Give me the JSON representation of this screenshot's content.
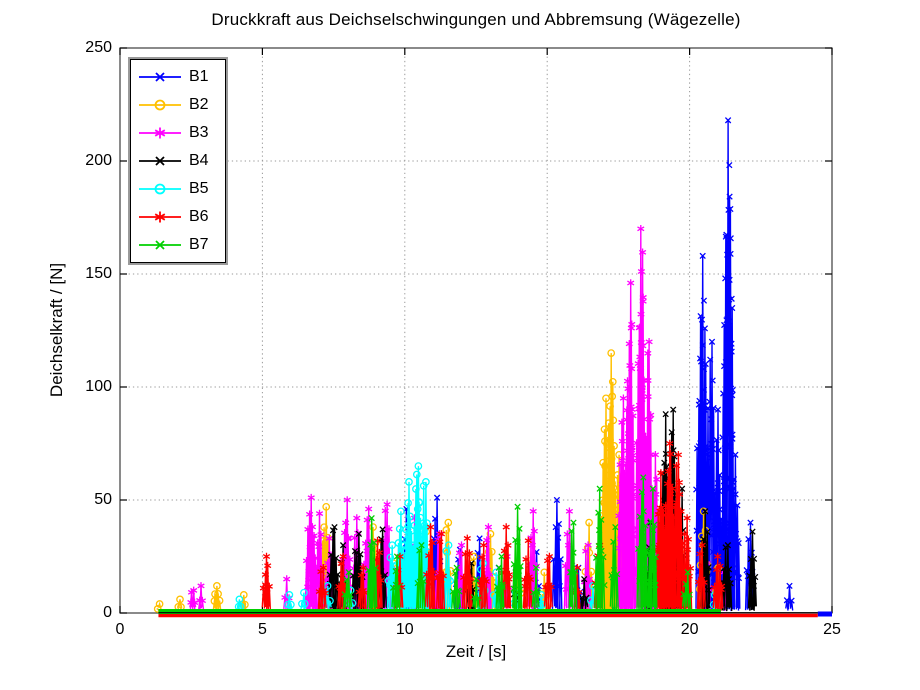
{
  "chart_data": {
    "type": "line",
    "title": "Druckkraft aus Deichselschwingungen und Abbremsung (Wägezelle)",
    "xlabel": "Zeit / [s]",
    "ylabel": "Deichselkraft / [N]",
    "xlim": [
      0,
      25
    ],
    "ylim": [
      0,
      250
    ],
    "xticks": [
      0,
      5,
      10,
      15,
      20,
      25
    ],
    "yticks": [
      0,
      50,
      100,
      150,
      200,
      250
    ],
    "grid": "dotted",
    "grid_color": "#999999",
    "legend_position": "top-left",
    "series_note": "clusters are spike bursts read from the plot: [time_s, peak_force_N, burst_width_s, spike_count]; baseline = [t_start, t_end, line_px, y_offset_px] at ~0 N",
    "series": [
      {
        "name": "B1",
        "color": "#0000ff",
        "marker": "x",
        "baseline": [
          24.5,
          25.0,
          5,
          1
        ],
        "clusters": [
          [
            9.3,
            15,
            0.15,
            3
          ],
          [
            10.05,
            46,
            0.25,
            5
          ],
          [
            11.1,
            51,
            0.3,
            6
          ],
          [
            11.9,
            28,
            0.2,
            4
          ],
          [
            12.6,
            33,
            0.2,
            4
          ],
          [
            13.3,
            20,
            0.15,
            3
          ],
          [
            14.6,
            27,
            0.2,
            4
          ],
          [
            15.35,
            50,
            0.25,
            5
          ],
          [
            16.1,
            20,
            0.15,
            3
          ],
          [
            17.3,
            30,
            0.15,
            3
          ],
          [
            20.45,
            158,
            0.35,
            8
          ],
          [
            20.75,
            120,
            0.3,
            6
          ],
          [
            21.0,
            90,
            0.25,
            5
          ],
          [
            21.35,
            218,
            0.35,
            9
          ],
          [
            21.6,
            70,
            0.25,
            5
          ],
          [
            22.1,
            40,
            0.2,
            4
          ],
          [
            23.5,
            12,
            0.15,
            3
          ]
        ]
      },
      {
        "name": "B2",
        "color": "#ffc000",
        "marker": "o",
        "baseline": null,
        "clusters": [
          [
            1.35,
            4,
            0.08,
            2
          ],
          [
            2.1,
            6,
            0.1,
            3
          ],
          [
            3.4,
            12,
            0.2,
            5
          ],
          [
            4.35,
            8,
            0.1,
            3
          ],
          [
            7.2,
            47,
            0.3,
            6
          ],
          [
            7.9,
            25,
            0.2,
            4
          ],
          [
            8.9,
            38,
            0.25,
            5
          ],
          [
            9.6,
            22,
            0.15,
            3
          ],
          [
            10.75,
            36,
            0.25,
            5
          ],
          [
            11.5,
            40,
            0.2,
            4
          ],
          [
            12.4,
            25,
            0.2,
            4
          ],
          [
            13.0,
            35,
            0.25,
            5
          ],
          [
            14.0,
            20,
            0.15,
            3
          ],
          [
            14.9,
            18,
            0.15,
            3
          ],
          [
            16.45,
            40,
            0.2,
            4
          ],
          [
            17.05,
            95,
            0.3,
            7
          ],
          [
            17.25,
            115,
            0.3,
            7
          ],
          [
            17.5,
            70,
            0.2,
            4
          ],
          [
            19.55,
            57,
            0.25,
            5
          ],
          [
            20.5,
            45,
            0.25,
            5
          ],
          [
            21.0,
            20,
            0.15,
            3
          ]
        ]
      },
      {
        "name": "B3",
        "color": "#ff00ff",
        "marker": "*",
        "baseline": null,
        "clusters": [
          [
            2.55,
            10,
            0.15,
            4
          ],
          [
            2.85,
            12,
            0.1,
            3
          ],
          [
            5.85,
            15,
            0.15,
            3
          ],
          [
            6.7,
            51,
            0.3,
            7
          ],
          [
            7.0,
            44,
            0.2,
            5
          ],
          [
            7.35,
            33,
            0.25,
            5
          ],
          [
            7.95,
            50,
            0.25,
            6
          ],
          [
            8.3,
            42,
            0.2,
            5
          ],
          [
            8.7,
            46,
            0.25,
            6
          ],
          [
            9.35,
            48,
            0.3,
            6
          ],
          [
            10.35,
            42,
            0.25,
            5
          ],
          [
            11.2,
            35,
            0.2,
            4
          ],
          [
            11.95,
            30,
            0.2,
            4
          ],
          [
            12.9,
            38,
            0.2,
            4
          ],
          [
            13.6,
            25,
            0.15,
            3
          ],
          [
            14.5,
            45,
            0.25,
            5
          ],
          [
            15.75,
            45,
            0.2,
            4
          ],
          [
            16.4,
            30,
            0.2,
            4
          ],
          [
            17.65,
            95,
            0.25,
            6
          ],
          [
            17.9,
            146,
            0.3,
            8
          ],
          [
            18.3,
            170,
            0.3,
            9
          ],
          [
            18.55,
            120,
            0.25,
            6
          ],
          [
            18.8,
            70,
            0.2,
            5
          ],
          [
            20.6,
            22,
            0.2,
            4
          ],
          [
            21.2,
            18,
            0.15,
            3
          ]
        ]
      },
      {
        "name": "B4",
        "color": "#000000",
        "marker": "x",
        "baseline": null,
        "clusters": [
          [
            7.5,
            38,
            0.3,
            6
          ],
          [
            7.8,
            30,
            0.2,
            4
          ],
          [
            8.35,
            35,
            0.3,
            6
          ],
          [
            9.2,
            37,
            0.2,
            4
          ],
          [
            12.3,
            22,
            0.2,
            4
          ],
          [
            13.9,
            18,
            0.15,
            3
          ],
          [
            16.3,
            15,
            0.15,
            3
          ],
          [
            18.6,
            40,
            0.2,
            4
          ],
          [
            19.15,
            88,
            0.3,
            7
          ],
          [
            19.4,
            90,
            0.25,
            6
          ],
          [
            19.7,
            55,
            0.2,
            4
          ],
          [
            20.55,
            45,
            0.25,
            5
          ],
          [
            21.3,
            30,
            0.3,
            6
          ],
          [
            22.2,
            36,
            0.2,
            5
          ]
        ]
      },
      {
        "name": "B5",
        "color": "#00ffff",
        "marker": "o",
        "baseline": null,
        "clusters": [
          [
            4.2,
            6,
            0.1,
            3
          ],
          [
            5.95,
            8,
            0.1,
            3
          ],
          [
            6.45,
            9,
            0.1,
            3
          ],
          [
            7.3,
            12,
            0.15,
            3
          ],
          [
            8.1,
            10,
            0.1,
            3
          ],
          [
            9.55,
            30,
            0.25,
            5
          ],
          [
            9.85,
            45,
            0.25,
            6
          ],
          [
            10.15,
            58,
            0.3,
            7
          ],
          [
            10.45,
            65,
            0.3,
            8
          ],
          [
            10.7,
            58,
            0.25,
            6
          ],
          [
            11.5,
            30,
            0.2,
            4
          ],
          [
            12.7,
            22,
            0.2,
            4
          ],
          [
            13.2,
            18,
            0.15,
            3
          ],
          [
            13.9,
            9,
            0.15,
            3
          ],
          [
            14.8,
            8,
            0.1,
            3
          ],
          [
            16.6,
            12,
            0.15,
            3
          ],
          [
            20.9,
            8,
            0.1,
            3
          ]
        ]
      },
      {
        "name": "B6",
        "color": "#ff0000",
        "marker": "*",
        "baseline": [
          1.35,
          24.5,
          3.5,
          2.5
        ],
        "clusters": [
          [
            5.15,
            25,
            0.2,
            5
          ],
          [
            7.1,
            20,
            0.2,
            4
          ],
          [
            7.8,
            25,
            0.2,
            4
          ],
          [
            8.5,
            20,
            0.2,
            4
          ],
          [
            9.05,
            32,
            0.25,
            5
          ],
          [
            9.8,
            25,
            0.2,
            4
          ],
          [
            10.9,
            38,
            0.25,
            5
          ],
          [
            11.25,
            35,
            0.2,
            4
          ],
          [
            12.2,
            33,
            0.25,
            5
          ],
          [
            12.75,
            30,
            0.2,
            4
          ],
          [
            13.55,
            38,
            0.25,
            5
          ],
          [
            14.3,
            32,
            0.2,
            4
          ],
          [
            15.05,
            25,
            0.2,
            4
          ],
          [
            16.05,
            20,
            0.15,
            3
          ],
          [
            16.8,
            30,
            0.2,
            4
          ],
          [
            19.0,
            62,
            0.3,
            7
          ],
          [
            19.3,
            75,
            0.35,
            9
          ],
          [
            19.6,
            70,
            0.3,
            7
          ],
          [
            19.9,
            42,
            0.25,
            5
          ],
          [
            20.4,
            30,
            0.2,
            4
          ],
          [
            21.0,
            25,
            0.25,
            5
          ]
        ]
      },
      {
        "name": "B7",
        "color": "#00d000",
        "marker": "x",
        "baseline": [
          1.35,
          21.1,
          5,
          -1.5
        ],
        "clusters": [
          [
            8.0,
            18,
            0.2,
            4
          ],
          [
            8.85,
            42,
            0.25,
            5
          ],
          [
            9.7,
            25,
            0.2,
            4
          ],
          [
            10.55,
            30,
            0.2,
            4
          ],
          [
            11.8,
            20,
            0.2,
            4
          ],
          [
            12.5,
            15,
            0.15,
            3
          ],
          [
            13.35,
            25,
            0.2,
            4
          ],
          [
            13.95,
            47,
            0.25,
            5
          ],
          [
            14.6,
            20,
            0.15,
            3
          ],
          [
            15.9,
            40,
            0.2,
            4
          ],
          [
            16.85,
            55,
            0.25,
            5
          ],
          [
            17.35,
            38,
            0.2,
            4
          ],
          [
            18.35,
            60,
            0.3,
            6
          ],
          [
            18.7,
            55,
            0.25,
            5
          ],
          [
            19.9,
            18,
            0.2,
            4
          ]
        ]
      }
    ],
    "zero_line": {
      "x1": 1.35,
      "x2": 24.5
    }
  }
}
